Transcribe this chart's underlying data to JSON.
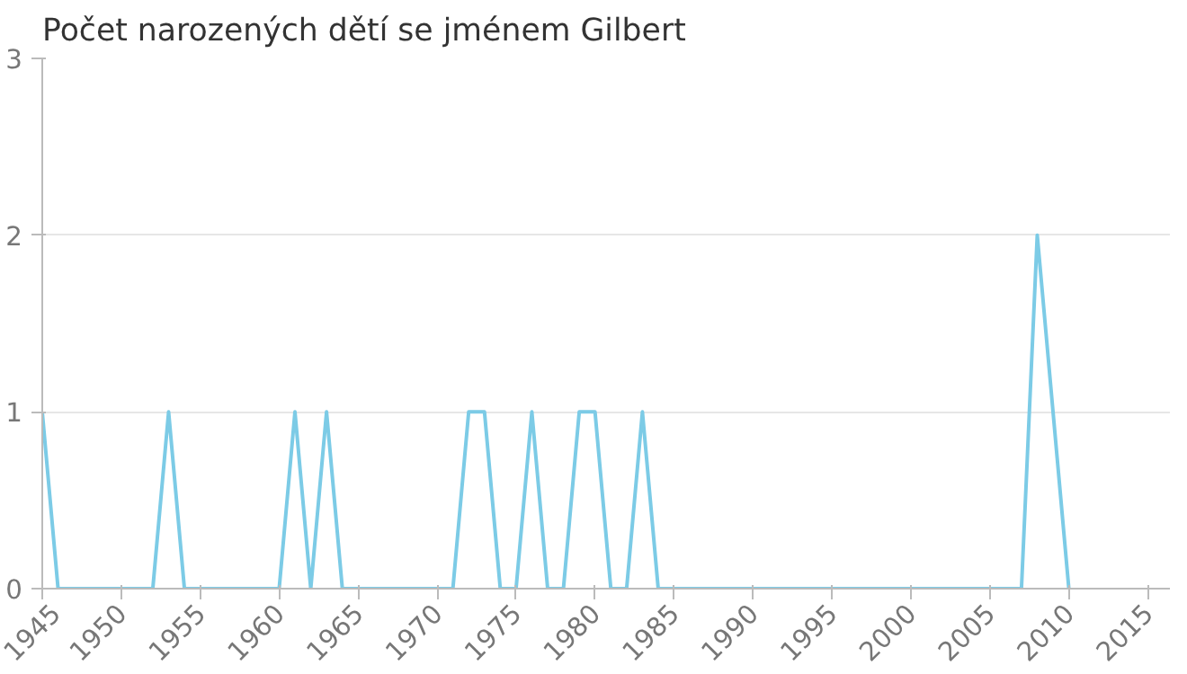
{
  "chart_data": {
    "type": "line",
    "title": "Počet narozených dětí se jménem Gilbert",
    "x": [
      1945,
      1946,
      1947,
      1948,
      1949,
      1950,
      1951,
      1952,
      1953,
      1954,
      1955,
      1956,
      1957,
      1958,
      1959,
      1960,
      1961,
      1962,
      1963,
      1964,
      1965,
      1966,
      1967,
      1968,
      1969,
      1970,
      1971,
      1972,
      1973,
      1974,
      1975,
      1976,
      1977,
      1978,
      1979,
      1980,
      1981,
      1982,
      1983,
      1984,
      1985,
      1986,
      1987,
      1988,
      1989,
      1990,
      1991,
      1992,
      1993,
      1994,
      1995,
      1996,
      1997,
      1998,
      1999,
      2000,
      2001,
      2002,
      2003,
      2004,
      2005,
      2006,
      2007,
      2008,
      2009,
      2010
    ],
    "series": [
      {
        "color": "#7ccbe6",
        "values": [
          1,
          0,
          0,
          0,
          0,
          0,
          0,
          0,
          1,
          0,
          0,
          0,
          0,
          0,
          0,
          0,
          1,
          0,
          1,
          0,
          0,
          0,
          0,
          0,
          0,
          0,
          0,
          1,
          1,
          0,
          0,
          1,
          0,
          0,
          1,
          1,
          0,
          0,
          1,
          0,
          0,
          0,
          0,
          0,
          0,
          0,
          0,
          0,
          0,
          0,
          0,
          0,
          0,
          0,
          0,
          0,
          0,
          0,
          0,
          0,
          0,
          0,
          0,
          2,
          1,
          0
        ]
      }
    ],
    "xlim": [
      1945,
      2016.4
    ],
    "ylim": [
      0,
      3
    ],
    "xticks": [
      1945,
      1950,
      1955,
      1960,
      1965,
      1970,
      1975,
      1980,
      1985,
      1990,
      1995,
      2000,
      2005,
      2010,
      2015
    ],
    "yticks": [
      0,
      1,
      2,
      3
    ],
    "grid": "y",
    "marker": "none",
    "line_style": "solid"
  }
}
